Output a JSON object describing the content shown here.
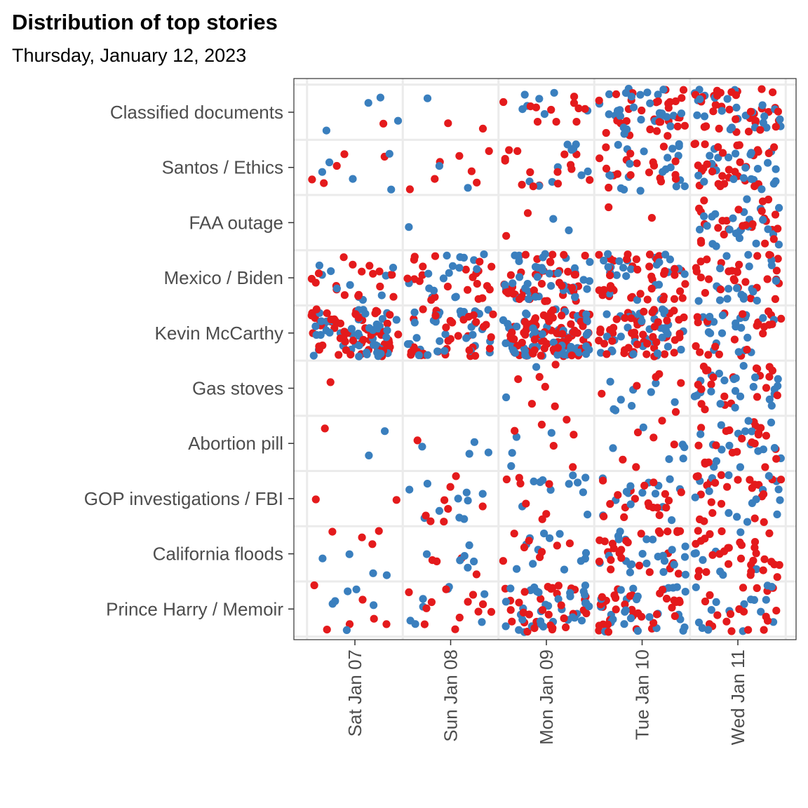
{
  "chart_data": {
    "type": "scatter",
    "title": "Distribution of top stories",
    "subtitle": "Thursday, January 12, 2023",
    "xlabel": "",
    "ylabel": "",
    "x_categories": [
      "Sat Jan 07",
      "Sun Jan 08",
      "Mon Jan 09",
      "Tue Jan 10",
      "Wed Jan 11"
    ],
    "y_categories": [
      "Classified documents",
      "Santos / Ethics",
      "FAA outage",
      "Mexico / Biden",
      "Kevin McCarthy",
      "Gas stoves",
      "Abortion pill",
      "GOP investigations / FBI",
      "California floods",
      "Prince Harry / Memoir"
    ],
    "point_colors": [
      "#3a7fbe",
      "#e41a1c"
    ],
    "grid": true,
    "legend": "none",
    "approximate_point_counts": {
      "Classified documents": [
        5,
        3,
        18,
        60,
        60
      ],
      "Santos / Ethics": [
        10,
        9,
        25,
        40,
        55
      ],
      "FAA outage": [
        0,
        1,
        4,
        2,
        50
      ],
      "Mexico / Biden": [
        28,
        40,
        80,
        65,
        50
      ],
      "Kevin McCarthy": [
        110,
        70,
        140,
        90,
        45
      ],
      "Gas stoves": [
        1,
        0,
        8,
        15,
        45
      ],
      "Abortion pill": [
        3,
        5,
        10,
        12,
        40
      ],
      "GOP investigations / FBI": [
        2,
        18,
        18,
        35,
        40
      ],
      "California floods": [
        8,
        10,
        20,
        50,
        40
      ],
      "Prince Harry / Memoir": [
        12,
        20,
        70,
        65,
        35
      ]
    }
  }
}
